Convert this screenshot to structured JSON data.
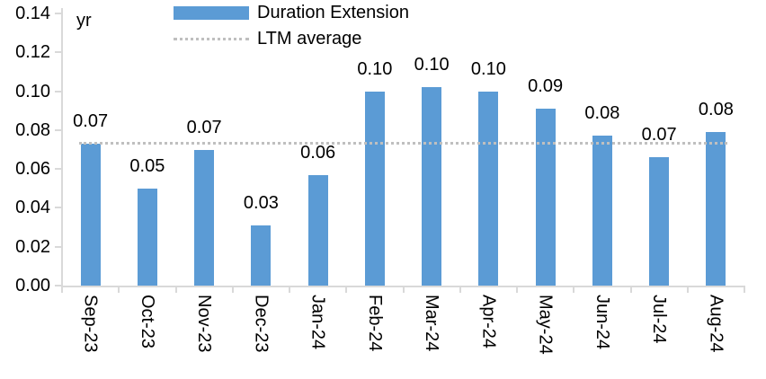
{
  "chart_data": {
    "type": "bar",
    "title": "",
    "unit_label": "yr",
    "categories": [
      "Sep-23",
      "Oct-23",
      "Nov-23",
      "Dec-23",
      "Jan-24",
      "Feb-24",
      "Mar-24",
      "Apr-24",
      "May-24",
      "Jun-24",
      "Jul-24",
      "Aug-24"
    ],
    "series": [
      {
        "name": "Duration Extension",
        "values": [
          0.073,
          0.05,
          0.07,
          0.031,
          0.057,
          0.1,
          0.102,
          0.1,
          0.091,
          0.077,
          0.066,
          0.079
        ],
        "data_labels": [
          "0.07",
          "0.05",
          "0.07",
          "0.03",
          "0.06",
          "0.10",
          "0.10",
          "0.10",
          "0.09",
          "0.08",
          "0.07",
          "0.08"
        ],
        "color": "#5B9BD5"
      }
    ],
    "reference_line": {
      "name": "LTM average",
      "value": 0.073,
      "style": "dotted",
      "color": "#BFBFBF"
    },
    "ylim": [
      0,
      0.14
    ],
    "ytick_labels": [
      "0.14",
      "0.12",
      "0.10",
      "0.08",
      "0.06",
      "0.04",
      "0.02",
      "0.00"
    ],
    "grid": false,
    "legend_position": "top",
    "xlabel": "",
    "ylabel": "yr"
  },
  "legend": {
    "items": [
      {
        "label": "Duration Extension",
        "swatch": "bar",
        "color": "#5B9BD5"
      },
      {
        "label": "LTM average",
        "swatch": "dotted-line",
        "color": "#BFBFBF"
      }
    ]
  },
  "colors": {
    "bar": "#5B9BD5",
    "reference_dotted": "#BFBFBF",
    "axis": "#D9D9D9",
    "text": "#000000"
  }
}
